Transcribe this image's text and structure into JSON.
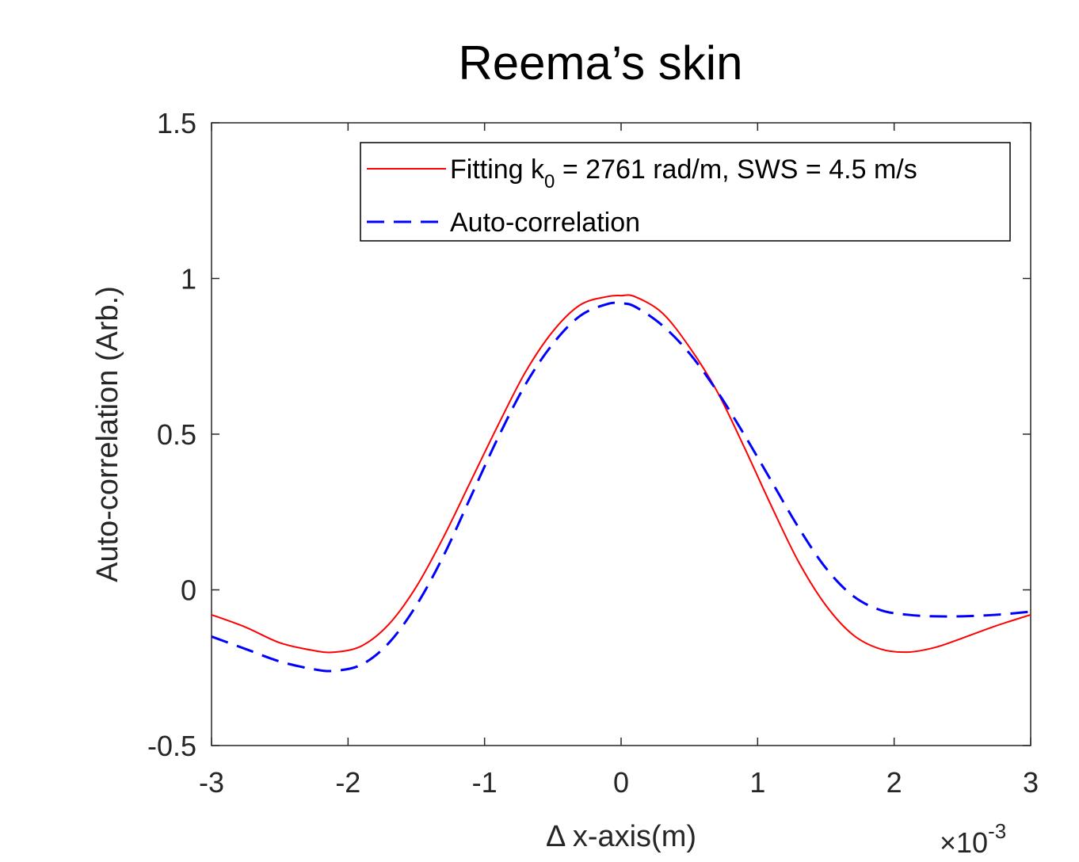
{
  "chart_data": {
    "type": "line",
    "title": "Reema’s skin",
    "xlabel": "Δ x-axis(m)",
    "ylabel": "Auto-correlation (Arb.)",
    "x_multiplier": {
      "base": "×10",
      "exponent": "-3"
    },
    "xlim": [
      -3,
      3
    ],
    "ylim": [
      -0.5,
      1.5
    ],
    "x_ticks": [
      "-3",
      "-2",
      "-1",
      "0",
      "1",
      "2",
      "3"
    ],
    "y_ticks": [
      "-0.5",
      "0",
      "0.5",
      "1",
      "1.5"
    ],
    "legend_position": "top-right",
    "grid": false,
    "series": [
      {
        "name": "Fitting k0 = 2761 rad/m, SWS = 4.5 m/s",
        "legend": {
          "pre": "Fitting k",
          "sub": "0",
          "post": " = 2761 rad/m, SWS = 4.5 m/s"
        },
        "color": "#ff0000",
        "style": "solid",
        "x": [
          -3.0,
          -2.75,
          -2.5,
          -2.25,
          -2.1,
          -1.9,
          -1.7,
          -1.5,
          -1.3,
          -1.1,
          -0.9,
          -0.7,
          -0.5,
          -0.3,
          -0.1,
          0.0,
          0.1,
          0.3,
          0.5,
          0.7,
          0.9,
          1.1,
          1.3,
          1.5,
          1.7,
          1.9,
          2.1,
          2.3,
          2.5,
          2.75,
          3.0
        ],
        "y": [
          -0.08,
          -0.12,
          -0.17,
          -0.195,
          -0.2,
          -0.18,
          -0.11,
          0.01,
          0.17,
          0.35,
          0.53,
          0.7,
          0.83,
          0.915,
          0.942,
          0.945,
          0.942,
          0.89,
          0.78,
          0.64,
          0.46,
          0.27,
          0.09,
          -0.05,
          -0.145,
          -0.19,
          -0.2,
          -0.185,
          -0.155,
          -0.115,
          -0.08
        ]
      },
      {
        "name": "Auto-correlation",
        "color": "#0000ff",
        "style": "dashed",
        "x": [
          -3.0,
          -2.75,
          -2.5,
          -2.25,
          -2.1,
          -1.9,
          -1.7,
          -1.5,
          -1.3,
          -1.1,
          -0.9,
          -0.7,
          -0.5,
          -0.3,
          -0.1,
          0.0,
          0.1,
          0.3,
          0.5,
          0.7,
          0.9,
          1.1,
          1.3,
          1.5,
          1.7,
          1.9,
          2.1,
          2.3,
          2.5,
          2.75,
          3.0
        ],
        "y": [
          -0.15,
          -0.19,
          -0.23,
          -0.255,
          -0.26,
          -0.24,
          -0.17,
          -0.05,
          0.11,
          0.3,
          0.49,
          0.66,
          0.79,
          0.88,
          0.918,
          0.92,
          0.91,
          0.85,
          0.76,
          0.64,
          0.5,
          0.35,
          0.2,
          0.07,
          -0.02,
          -0.065,
          -0.08,
          -0.085,
          -0.085,
          -0.08,
          -0.07
        ]
      }
    ]
  }
}
